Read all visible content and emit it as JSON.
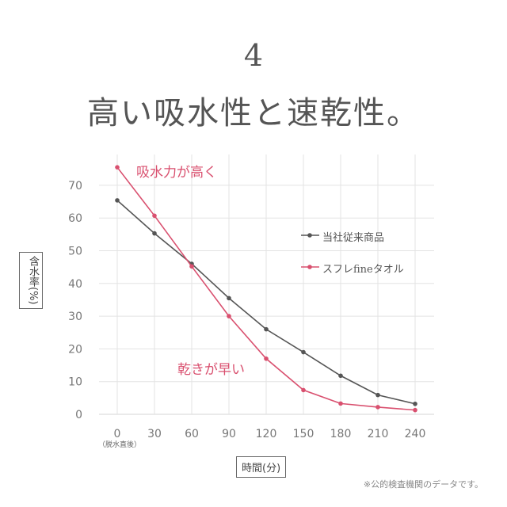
{
  "heading": {
    "number": "4",
    "title": "高い吸水性と速乾性。"
  },
  "chart_data": {
    "type": "line",
    "x": [
      0,
      30,
      60,
      90,
      120,
      150,
      180,
      210,
      240
    ],
    "x_tick_labels": [
      "0",
      "30",
      "60",
      "90",
      "120",
      "150",
      "180",
      "210",
      "240"
    ],
    "x_tick_sublabel": "（脱水直後）",
    "xlabel": "時間(分)",
    "ylabel": "含水率(%)",
    "ylim": [
      0,
      75
    ],
    "y_ticks": [
      0,
      10,
      20,
      30,
      40,
      50,
      60,
      70
    ],
    "grid": true,
    "legend_position": "right",
    "series": [
      {
        "name": "当社従来商品",
        "color": "#555555",
        "values": [
          65.4,
          55.3,
          46,
          35.5,
          26,
          19,
          11.8,
          5.9,
          3.2
        ]
      },
      {
        "name": "スフレfineタオル",
        "color": "#d9506f",
        "values": [
          75.5,
          60.7,
          45.2,
          30,
          17,
          7.4,
          3.3,
          2.2,
          1.3
        ]
      }
    ],
    "annotations": [
      "吸水力が高く",
      "乾きが早い"
    ]
  },
  "footnote": "※公的検査機関のデータです。"
}
